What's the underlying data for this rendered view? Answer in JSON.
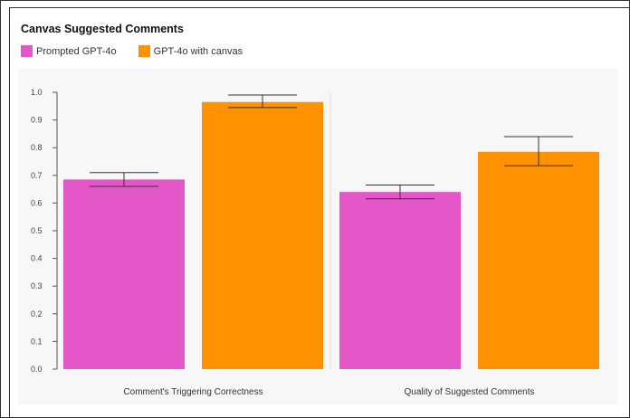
{
  "chart_data": {
    "type": "bar",
    "title": "Canvas Suggested Comments",
    "xlabel": "",
    "ylabel": "",
    "ylim": [
      0,
      1.0
    ],
    "yticks": [
      "0.0",
      "0.1",
      "0.2",
      "0.3",
      "0.4",
      "0.5",
      "0.6",
      "0.7",
      "0.8",
      "0.9",
      "1.0"
    ],
    "categories": [
      "Comment's Triggering Correctness",
      "Quality of Suggested Comments"
    ],
    "series": [
      {
        "name": "Prompted GPT-4o",
        "color": "#e457c9",
        "values": [
          0.685,
          0.64
        ],
        "error_low": [
          0.66,
          0.615
        ],
        "error_high": [
          0.71,
          0.665
        ]
      },
      {
        "name": "GPT-4o with canvas",
        "color": "#ff9200",
        "values": [
          0.965,
          0.785
        ],
        "error_low": [
          0.945,
          0.735
        ],
        "error_high": [
          0.99,
          0.84
        ]
      }
    ],
    "legend_position": "top-left",
    "grid": false
  }
}
